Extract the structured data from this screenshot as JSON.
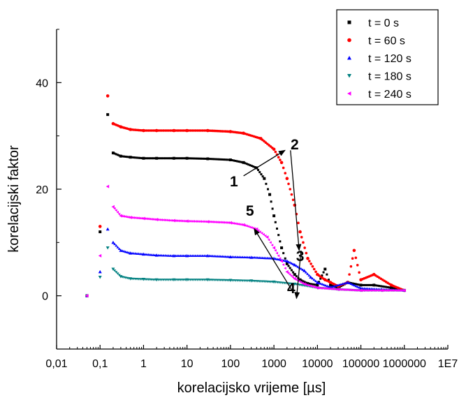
{
  "chart_data": {
    "type": "scatter",
    "xlabel": "korelacijsko vrijeme [µs]",
    "ylabel": "korelacijski faktor",
    "xscale": "log",
    "xlim": [
      0.01,
      10000000
    ],
    "ylim": [
      -10,
      50
    ],
    "grid": false,
    "legend_position": "top-right",
    "x_ticks": [
      {
        "v": 0.01,
        "label": "0,01"
      },
      {
        "v": 0.1,
        "label": "0,1"
      },
      {
        "v": 1,
        "label": "1"
      },
      {
        "v": 10,
        "label": "10"
      },
      {
        "v": 100,
        "label": "100"
      },
      {
        "v": 1000,
        "label": "1000"
      },
      {
        "v": 10000,
        "label": "10000"
      },
      {
        "v": 100000,
        "label": "100000"
      },
      {
        "v": 1000000,
        "label": "1000000"
      },
      {
        "v": 10000000,
        "label": "1E7"
      }
    ],
    "y_ticks": [
      {
        "v": 0,
        "label": "0"
      },
      {
        "v": 20,
        "label": "20"
      },
      {
        "v": 40,
        "label": "40"
      }
    ],
    "series": [
      {
        "name": "t = 0 s",
        "color": "#000000",
        "marker": "square",
        "x": [
          0.05,
          0.1,
          0.15,
          0.2,
          0.3,
          0.5,
          1,
          2,
          5,
          10,
          30,
          100,
          200,
          400,
          600,
          800,
          1000,
          1500,
          2000,
          3000,
          4000,
          6000,
          10000,
          15000,
          20000,
          30000,
          50000,
          100000,
          200000,
          500000,
          1000000
        ],
        "y": [
          0,
          12,
          34,
          26.8,
          26.2,
          26,
          25.8,
          25.8,
          25.8,
          25.8,
          25.7,
          25.5,
          25,
          24,
          22,
          19,
          15,
          9,
          6,
          4,
          3,
          2.3,
          2,
          5,
          2,
          1.5,
          2.5,
          2,
          2,
          1.5,
          1
        ]
      },
      {
        "name": "t = 60 s",
        "color": "#ff0000",
        "marker": "circle",
        "x": [
          0.05,
          0.1,
          0.15,
          0.2,
          0.3,
          0.5,
          1,
          2,
          5,
          10,
          30,
          100,
          200,
          500,
          1000,
          1500,
          2000,
          3000,
          4000,
          6000,
          10000,
          15000,
          20000,
          30000,
          50000,
          70000,
          100000,
          200000,
          500000,
          1000000
        ],
        "y": [
          0,
          13,
          37.5,
          32.3,
          31.7,
          31.2,
          31,
          31,
          31,
          31,
          31,
          30.8,
          30.5,
          29.5,
          27.5,
          25,
          22,
          17,
          12,
          7,
          4,
          3,
          2.5,
          1.8,
          2.5,
          8.5,
          3,
          4,
          2,
          1
        ]
      },
      {
        "name": "t = 120 s",
        "color": "#0000ff",
        "marker": "triangle-up",
        "x": [
          0.05,
          0.1,
          0.15,
          0.2,
          0.3,
          0.5,
          1,
          2,
          5,
          10,
          30,
          100,
          300,
          1000,
          2000,
          3000,
          5000,
          7000,
          10000,
          20000,
          50000,
          100000,
          300000,
          1000000
        ],
        "y": [
          0,
          4.5,
          12.5,
          10,
          8.5,
          8,
          7.8,
          7.6,
          7.5,
          7.5,
          7.5,
          7.3,
          7.2,
          7,
          6.5,
          5.8,
          4.7,
          3.5,
          2.5,
          1.6,
          2.5,
          1.4,
          1.2,
          1
        ]
      },
      {
        "name": "t = 180 s",
        "color": "#008080",
        "marker": "triangle-down",
        "x": [
          0.05,
          0.1,
          0.15,
          0.2,
          0.3,
          0.5,
          1,
          2,
          5,
          10,
          30,
          100,
          300,
          1000,
          3000,
          10000,
          30000,
          100000,
          300000,
          1000000
        ],
        "y": [
          0,
          3.5,
          9,
          5,
          3.6,
          3.2,
          3.1,
          3,
          3,
          3,
          3,
          2.9,
          2.8,
          2.6,
          2.2,
          1.5,
          1.2,
          1,
          1,
          1
        ]
      },
      {
        "name": "t = 240 s",
        "color": "#ff00ff",
        "marker": "triangle-left",
        "x": [
          0.05,
          0.1,
          0.15,
          0.2,
          0.3,
          0.5,
          1,
          2,
          5,
          10,
          30,
          100,
          200,
          400,
          700,
          1000,
          1500,
          2000,
          3000,
          5000,
          10000,
          30000,
          100000,
          300000,
          1000000
        ],
        "y": [
          0,
          7.5,
          20.5,
          16.7,
          15,
          14.7,
          14.5,
          14.3,
          14.1,
          14,
          13.9,
          13.7,
          13.3,
          12.5,
          11,
          9,
          6.5,
          4.5,
          3.2,
          2.2,
          1.5,
          1.2,
          1,
          1,
          1
        ]
      }
    ],
    "annotations": [
      {
        "label": "1",
        "x": 120,
        "y": 20.5
      },
      {
        "label": "2",
        "x": 3000,
        "y": 27.5
      },
      {
        "label": "3",
        "x": 4000,
        "y": 6.5
      },
      {
        "label": "4",
        "x": 2500,
        "y": 0.5
      },
      {
        "label": "5",
        "x": 280,
        "y": 15
      }
    ],
    "arrows": [
      {
        "from": [
          200,
          22.5
        ],
        "to": [
          1800,
          27.3
        ]
      },
      {
        "from": [
          2400,
          27.3
        ],
        "to": [
          3800,
          8.5
        ]
      },
      {
        "from": [
          4200,
          8.5
        ],
        "to": [
          3300,
          -0.5
        ]
      },
      {
        "from": [
          2700,
          0.8
        ],
        "to": [
          350,
          12.6
        ]
      }
    ]
  }
}
